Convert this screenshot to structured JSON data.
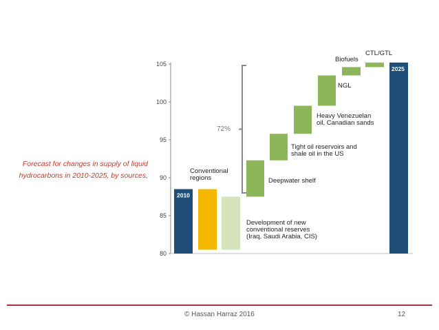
{
  "caption": {
    "line1": "Forecast for changes in supply of liquid",
    "line2": "hydrocarbons in 2010-2025, by sources,"
  },
  "footer": {
    "copyright": "© Hassan Harraz 2016",
    "page": "12"
  },
  "chart_data": {
    "type": "waterfall",
    "ylim": [
      80,
      105
    ],
    "yticks": [
      80,
      85,
      90,
      95,
      100,
      105
    ],
    "bars": [
      {
        "label": "2010",
        "start": 80,
        "end": 88.5,
        "kind": "total",
        "color": "#1f4e79"
      },
      {
        "label": "Conventional regions",
        "start": 80.5,
        "end": 88.5,
        "kind": "step",
        "color": "#f5b800"
      },
      {
        "label": "Development of new conventional reserves (Iraq, Saudi Arabia, CIS)",
        "start": 80.5,
        "end": 87.5,
        "kind": "step",
        "color": "#d6e4bc"
      },
      {
        "label": "Deepwater shelf",
        "start": 87.5,
        "end": 92.3,
        "kind": "step",
        "color": "#8db55a"
      },
      {
        "label": "Tight oil reservoirs and shale oil in the US",
        "start": 92.3,
        "end": 95.8,
        "kind": "step",
        "color": "#8db55a"
      },
      {
        "label": "Heavy Venezuelan oil, Canadian sands",
        "start": 95.8,
        "end": 99.5,
        "kind": "step",
        "color": "#8db55a"
      },
      {
        "label": "NGL",
        "start": 99.5,
        "end": 103.5,
        "kind": "step",
        "color": "#8db55a"
      },
      {
        "label": "Biofuels",
        "start": 103.5,
        "end": 104.6,
        "kind": "step",
        "color": "#8db55a"
      },
      {
        "label": "CTL/GTL",
        "start": 104.6,
        "end": 105.2,
        "kind": "step",
        "color": "#8db55a"
      },
      {
        "label": "2025",
        "start": 80,
        "end": 105.2,
        "kind": "total",
        "color": "#1f4e79"
      }
    ],
    "bracket_label": "72%",
    "bar_labels": {
      "start": "2010",
      "end": "2025",
      "conventional": [
        "Conventional",
        "regions"
      ],
      "new_reserves": [
        "Development of new",
        "conventional reserves",
        "(Iraq, Saudi Arabia, CIS)"
      ],
      "deepwater": [
        "Deepwater shelf"
      ],
      "tight_oil": [
        "Tight oil reservoirs and",
        "shale oil in the US"
      ],
      "heavy_oil": [
        "Heavy Venezuelan",
        "oil, Canadian sands"
      ],
      "ngl": [
        "NGL"
      ],
      "biofuels": [
        "Biofuels"
      ],
      "ctl": [
        "CTL/GTL"
      ]
    }
  }
}
